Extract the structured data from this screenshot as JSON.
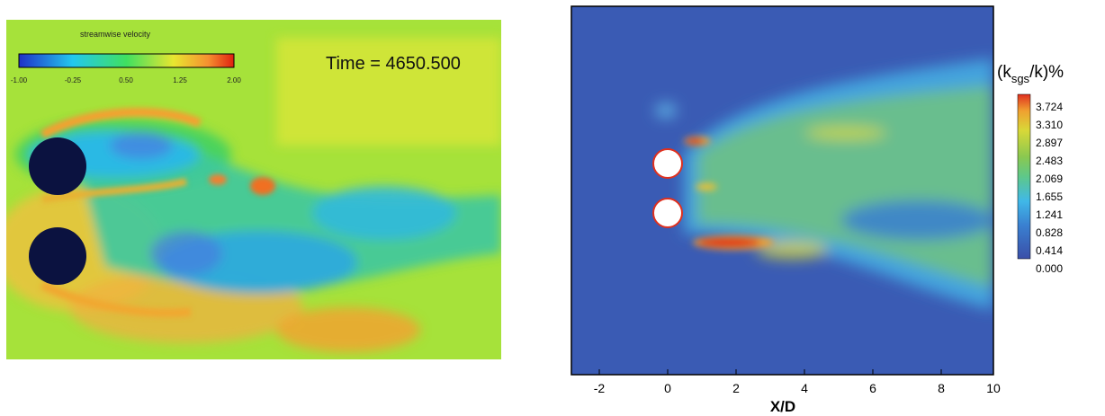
{
  "left_panel": {
    "colorbar_title": "streamwise velocity",
    "colorbar_ticks": [
      "-1.00",
      "-0.25",
      "0.50",
      "1.25",
      "2.00"
    ],
    "time_label": "Time = 4650.500",
    "colors": {
      "background_field": "#a6e23a",
      "cylinder": "#0b1240"
    }
  },
  "right_panel": {
    "legend_title_prefix": "(k",
    "legend_title_sub": "sgs",
    "legend_title_suffix": "/k)%",
    "legend_ticks": [
      "3.724",
      "3.310",
      "2.897",
      "2.483",
      "2.069",
      "1.655",
      "1.241",
      "0.828",
      "0.414",
      "0.000"
    ],
    "x_ticks": [
      "-2",
      "0",
      "2",
      "4",
      "6",
      "8",
      "10"
    ],
    "x_label": "X/D",
    "colors": {
      "background_field": "#3a5bb4",
      "cylinder": "#ffffff",
      "cylinder_rim": "#e0301e"
    }
  }
}
